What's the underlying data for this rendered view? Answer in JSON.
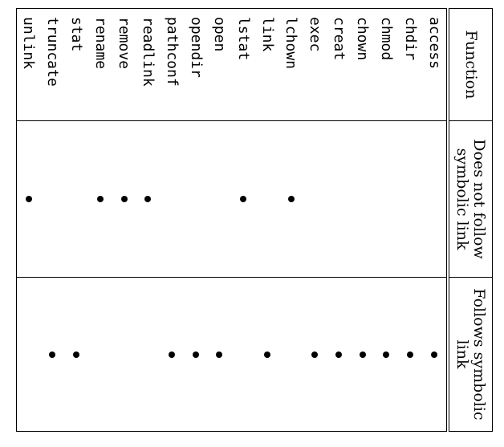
{
  "table": {
    "headers": {
      "function": "Function",
      "no_follow": "Does not follow symbolic link",
      "follows": "Follows symbolic link"
    },
    "rows": [
      {
        "fn": "access",
        "no_follow": false,
        "follows": true
      },
      {
        "fn": "chdir",
        "no_follow": false,
        "follows": true
      },
      {
        "fn": "chmod",
        "no_follow": false,
        "follows": true
      },
      {
        "fn": "chown",
        "no_follow": false,
        "follows": true
      },
      {
        "fn": "creat",
        "no_follow": false,
        "follows": true
      },
      {
        "fn": "exec",
        "no_follow": false,
        "follows": true
      },
      {
        "fn": "lchown",
        "no_follow": true,
        "follows": false
      },
      {
        "fn": "link",
        "no_follow": false,
        "follows": true
      },
      {
        "fn": "lstat",
        "no_follow": true,
        "follows": false
      },
      {
        "fn": "open",
        "no_follow": false,
        "follows": true
      },
      {
        "fn": "opendir",
        "no_follow": false,
        "follows": true
      },
      {
        "fn": "pathconf",
        "no_follow": false,
        "follows": true
      },
      {
        "fn": "readlink",
        "no_follow": true,
        "follows": false
      },
      {
        "fn": "remove",
        "no_follow": true,
        "follows": false
      },
      {
        "fn": "rename",
        "no_follow": true,
        "follows": false
      },
      {
        "fn": "stat",
        "no_follow": false,
        "follows": true
      },
      {
        "fn": "truncate",
        "no_follow": false,
        "follows": true
      },
      {
        "fn": "unlink",
        "no_follow": true,
        "follows": false
      }
    ]
  }
}
